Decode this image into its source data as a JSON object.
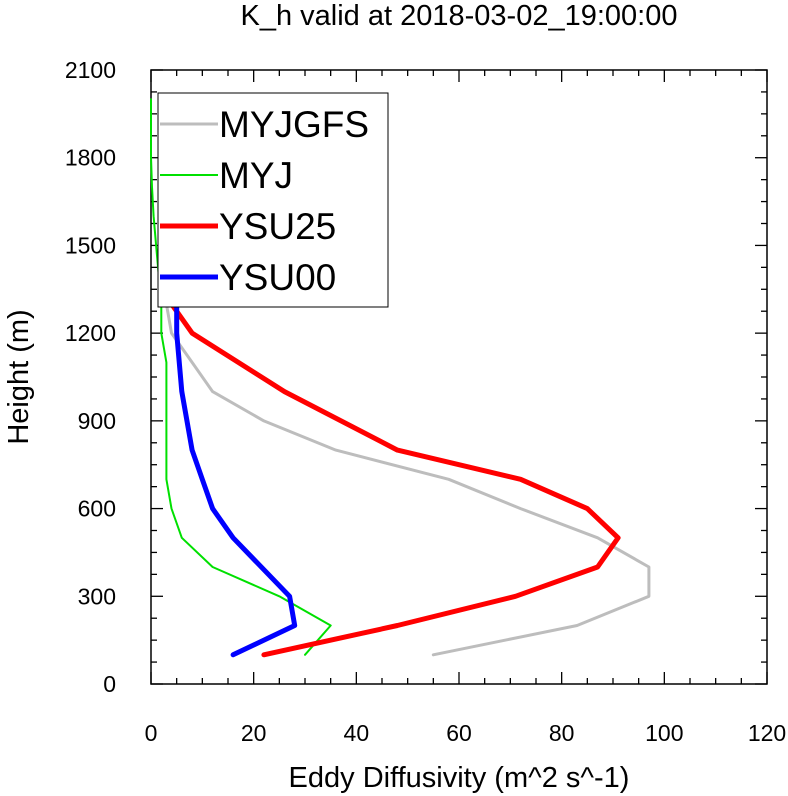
{
  "chart_data": {
    "type": "line",
    "title": "K_h valid at 2018-03-02_19:00:00",
    "xlabel": "Eddy Diffusivity (m^2 s^-1)",
    "ylabel": "Height (m)",
    "xlim": [
      0,
      120
    ],
    "ylim": [
      0,
      2100
    ],
    "xticks": [
      "0",
      "20",
      "40",
      "60",
      "80",
      "100",
      "120"
    ],
    "yticks": [
      "0",
      "300",
      "600",
      "900",
      "1200",
      "1500",
      "1800",
      "2100"
    ],
    "grid": false,
    "legend_position": "top-left",
    "series": [
      {
        "name": "MYJGFS",
        "color": "#bdbdbd",
        "width": 3,
        "points": [
          [
            55,
            100
          ],
          [
            83,
            200
          ],
          [
            97,
            300
          ],
          [
            97,
            400
          ],
          [
            87,
            500
          ],
          [
            72,
            600
          ],
          [
            58,
            700
          ],
          [
            36,
            800
          ],
          [
            22,
            900
          ],
          [
            12,
            1000
          ],
          [
            8,
            1100
          ],
          [
            4,
            1200
          ],
          [
            3,
            1300
          ],
          [
            2,
            1400
          ],
          [
            2,
            1500
          ],
          [
            2,
            1600
          ],
          [
            2,
            1700
          ],
          [
            2,
            1800
          ],
          [
            2,
            1900
          ],
          [
            2,
            2000
          ]
        ]
      },
      {
        "name": "MYJ",
        "color": "#00e000",
        "width": 2,
        "points": [
          [
            30,
            100
          ],
          [
            35,
            200
          ],
          [
            25,
            300
          ],
          [
            12,
            400
          ],
          [
            6,
            500
          ],
          [
            4,
            600
          ],
          [
            3,
            700
          ],
          [
            3,
            800
          ],
          [
            3,
            900
          ],
          [
            3,
            1000
          ],
          [
            3,
            1100
          ],
          [
            2,
            1200
          ],
          [
            2,
            1300
          ],
          [
            1.5,
            1400
          ],
          [
            1,
            1500
          ],
          [
            0.5,
            1600
          ],
          [
            0.2,
            1700
          ],
          [
            0,
            1800
          ],
          [
            0,
            1900
          ],
          [
            0,
            2000
          ]
        ]
      },
      {
        "name": "YSU25",
        "color": "#ff0000",
        "width": 5,
        "points": [
          [
            22,
            100
          ],
          [
            48,
            200
          ],
          [
            71,
            300
          ],
          [
            87,
            400
          ],
          [
            91,
            500
          ],
          [
            85,
            600
          ],
          [
            72,
            700
          ],
          [
            48,
            800
          ],
          [
            26,
            1000
          ],
          [
            8,
            1200
          ],
          [
            4,
            1300
          ],
          [
            3,
            1400
          ],
          [
            3,
            1500
          ],
          [
            3,
            1600
          ],
          [
            3,
            1700
          ],
          [
            3,
            1800
          ],
          [
            3,
            1900
          ],
          [
            3,
            2000
          ]
        ]
      },
      {
        "name": "YSU00",
        "color": "#0000ff",
        "width": 5,
        "points": [
          [
            16,
            100
          ],
          [
            28,
            200
          ],
          [
            27,
            300
          ],
          [
            16,
            500
          ],
          [
            12,
            600
          ],
          [
            10,
            700
          ],
          [
            8,
            800
          ],
          [
            6,
            1000
          ],
          [
            5,
            1200
          ],
          [
            5,
            1300
          ],
          [
            5,
            1400
          ],
          [
            5,
            1500
          ],
          [
            5,
            1600
          ],
          [
            5,
            1700
          ],
          [
            4,
            1800
          ],
          [
            3,
            1900
          ],
          [
            2.5,
            2000
          ]
        ]
      }
    ]
  }
}
